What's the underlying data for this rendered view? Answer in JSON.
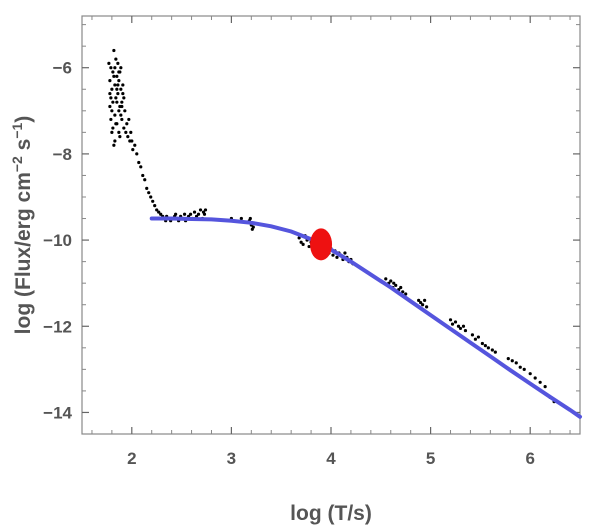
{
  "chart_data": {
    "type": "scatter",
    "xlabel": "log (T/s)",
    "ylabel_parts": {
      "main": "log (Flux/erg cm",
      "exp1": "−2",
      "mid": " s",
      "exp2": "−1",
      "end": ")"
    },
    "xlim": [
      1.5,
      6.5
    ],
    "ylim": [
      -14.5,
      -4.8
    ],
    "x_ticks": [
      {
        "value": 2,
        "label": "2"
      },
      {
        "value": 3,
        "label": "3"
      },
      {
        "value": 4,
        "label": "4"
      },
      {
        "value": 5,
        "label": "5"
      },
      {
        "value": 6,
        "label": "6"
      }
    ],
    "y_ticks": [
      {
        "value": -6,
        "label": "−6"
      },
      {
        "value": -8,
        "label": "−8"
      },
      {
        "value": -10,
        "label": "−10"
      },
      {
        "value": -12,
        "label": "−12"
      },
      {
        "value": -14,
        "label": "−14"
      }
    ],
    "grid": false,
    "series": [
      {
        "kind": "points",
        "color": "#000000",
        "points": [
          [
            1.77,
            -5.9
          ],
          [
            1.78,
            -6.3
          ],
          [
            1.78,
            -6.9
          ],
          [
            1.79,
            -7.2
          ],
          [
            1.79,
            -6.0
          ],
          [
            1.8,
            -6.5
          ],
          [
            1.8,
            -7.5
          ],
          [
            1.81,
            -6.1
          ],
          [
            1.81,
            -6.8
          ],
          [
            1.82,
            -7.8
          ],
          [
            1.82,
            -5.6
          ],
          [
            1.83,
            -6.4
          ],
          [
            1.83,
            -7.1
          ],
          [
            1.84,
            -6.7
          ],
          [
            1.84,
            -5.8
          ],
          [
            1.85,
            -6.2
          ],
          [
            1.85,
            -7.3
          ],
          [
            1.86,
            -6.6
          ],
          [
            1.86,
            -5.9
          ],
          [
            1.87,
            -7.0
          ],
          [
            1.87,
            -6.3
          ],
          [
            1.88,
            -6.9
          ],
          [
            1.88,
            -7.6
          ],
          [
            1.89,
            -6.5
          ],
          [
            1.89,
            -6.0
          ],
          [
            1.9,
            -7.2
          ],
          [
            1.9,
            -6.8
          ],
          [
            1.91,
            -6.4
          ],
          [
            1.92,
            -7.4
          ],
          [
            1.92,
            -6.7
          ],
          [
            1.78,
            -6.6
          ],
          [
            1.8,
            -7.0
          ],
          [
            1.82,
            -6.2
          ],
          [
            1.84,
            -7.3
          ],
          [
            1.86,
            -6.4
          ],
          [
            1.88,
            -6.1
          ],
          [
            1.9,
            -6.9
          ],
          [
            1.83,
            -6.0
          ],
          [
            1.85,
            -6.8
          ],
          [
            1.87,
            -7.5
          ],
          [
            1.79,
            -6.7
          ],
          [
            1.81,
            -7.4
          ],
          [
            1.83,
            -7.7
          ],
          [
            1.85,
            -6.5
          ],
          [
            1.87,
            -6.1
          ],
          [
            1.89,
            -7.1
          ],
          [
            1.91,
            -6.6
          ],
          [
            1.93,
            -7.0
          ],
          [
            1.94,
            -7.5
          ],
          [
            1.95,
            -7.3
          ],
          [
            1.96,
            -7.6
          ],
          [
            1.97,
            -7.2
          ],
          [
            1.98,
            -7.7
          ],
          [
            1.99,
            -7.5
          ],
          [
            2.0,
            -7.7
          ],
          [
            2.01,
            -7.9
          ],
          [
            2.03,
            -7.8
          ],
          [
            2.05,
            -8.0
          ],
          [
            2.07,
            -8.2
          ],
          [
            2.09,
            -8.3
          ],
          [
            2.11,
            -8.5
          ],
          [
            2.13,
            -8.6
          ],
          [
            2.15,
            -8.8
          ],
          [
            2.17,
            -8.9
          ],
          [
            2.19,
            -9.0
          ],
          [
            2.21,
            -9.1
          ],
          [
            2.23,
            -9.2
          ],
          [
            2.25,
            -9.3
          ],
          [
            2.27,
            -9.35
          ],
          [
            2.29,
            -9.4
          ],
          [
            2.31,
            -9.45
          ],
          [
            2.33,
            -9.5
          ],
          [
            2.35,
            -9.45
          ],
          [
            2.37,
            -9.5
          ],
          [
            2.39,
            -9.55
          ],
          [
            2.41,
            -9.5
          ],
          [
            2.43,
            -9.45
          ],
          [
            2.45,
            -9.5
          ],
          [
            2.47,
            -9.55
          ],
          [
            2.49,
            -9.45
          ],
          [
            2.51,
            -9.5
          ],
          [
            2.53,
            -9.4
          ],
          [
            2.55,
            -9.5
          ],
          [
            2.57,
            -9.45
          ],
          [
            2.59,
            -9.4
          ],
          [
            2.61,
            -9.5
          ],
          [
            2.63,
            -9.35
          ],
          [
            2.65,
            -9.45
          ],
          [
            2.67,
            -9.4
          ],
          [
            2.69,
            -9.3
          ],
          [
            2.71,
            -9.5
          ],
          [
            2.73,
            -9.4
          ],
          [
            2.74,
            -9.3
          ],
          [
            2.34,
            -9.55
          ],
          [
            2.44,
            -9.4
          ],
          [
            2.54,
            -9.55
          ],
          [
            2.64,
            -9.5
          ],
          [
            2.72,
            -9.35
          ],
          [
            3.0,
            -9.5
          ],
          [
            3.1,
            -9.5
          ],
          [
            3.18,
            -9.55
          ],
          [
            3.2,
            -9.65
          ],
          [
            3.21,
            -9.75
          ],
          [
            3.22,
            -9.7
          ],
          [
            3.19,
            -9.5
          ],
          [
            3.68,
            -9.95
          ],
          [
            3.7,
            -10.05
          ],
          [
            3.72,
            -10.1
          ],
          [
            3.74,
            -9.9
          ],
          [
            3.76,
            -10.0
          ],
          [
            3.78,
            -10.15
          ],
          [
            3.8,
            -10.05
          ],
          [
            3.82,
            -10.2
          ],
          [
            3.84,
            -10.1
          ],
          [
            3.86,
            -10.0
          ],
          [
            3.88,
            -10.15
          ],
          [
            3.92,
            -10.05
          ],
          [
            3.94,
            -10.25
          ],
          [
            3.96,
            -10.1
          ],
          [
            3.98,
            -10.3
          ],
          [
            4.0,
            -10.2
          ],
          [
            4.02,
            -10.35
          ],
          [
            4.04,
            -10.25
          ],
          [
            4.06,
            -10.4
          ],
          [
            4.08,
            -10.3
          ],
          [
            4.1,
            -10.35
          ],
          [
            4.12,
            -10.45
          ],
          [
            4.14,
            -10.3
          ],
          [
            4.16,
            -10.4
          ],
          [
            4.18,
            -10.5
          ],
          [
            4.2,
            -10.45
          ],
          [
            4.22,
            -10.55
          ],
          [
            4.55,
            -10.9
          ],
          [
            4.58,
            -11.0
          ],
          [
            4.6,
            -10.95
          ],
          [
            4.62,
            -11.1
          ],
          [
            4.65,
            -11.05
          ],
          [
            4.68,
            -11.15
          ],
          [
            4.7,
            -11.1
          ],
          [
            4.72,
            -11.2
          ],
          [
            4.75,
            -11.25
          ],
          [
            4.63,
            -11.0
          ],
          [
            4.88,
            -11.4
          ],
          [
            4.9,
            -11.45
          ],
          [
            4.92,
            -11.5
          ],
          [
            4.94,
            -11.4
          ],
          [
            4.96,
            -11.55
          ],
          [
            5.2,
            -11.85
          ],
          [
            5.22,
            -11.95
          ],
          [
            5.25,
            -11.9
          ],
          [
            5.28,
            -12.0
          ],
          [
            5.3,
            -12.05
          ],
          [
            5.33,
            -12.0
          ],
          [
            5.35,
            -12.1
          ],
          [
            5.42,
            -12.2
          ],
          [
            5.45,
            -12.3
          ],
          [
            5.48,
            -12.25
          ],
          [
            5.52,
            -12.4
          ],
          [
            5.55,
            -12.45
          ],
          [
            5.58,
            -12.5
          ],
          [
            5.62,
            -12.55
          ],
          [
            5.65,
            -12.6
          ],
          [
            5.78,
            -12.75
          ],
          [
            5.82,
            -12.8
          ],
          [
            5.86,
            -12.85
          ],
          [
            5.9,
            -12.95
          ],
          [
            5.94,
            -13.0
          ],
          [
            6.0,
            -13.1
          ],
          [
            6.05,
            -13.2
          ],
          [
            6.1,
            -13.3
          ],
          [
            6.15,
            -13.4
          ],
          [
            6.2,
            -13.65
          ],
          [
            6.24,
            -13.75
          ]
        ]
      },
      {
        "kind": "line",
        "color": "#5555dd",
        "x": [
          2.2,
          2.4,
          2.6,
          2.8,
          3.0,
          3.2,
          3.4,
          3.6,
          3.8,
          3.9,
          4.0,
          4.2,
          4.4,
          4.6,
          4.8,
          5.0,
          5.2,
          5.4,
          5.6,
          5.8,
          6.0,
          6.2,
          6.4,
          6.5
        ],
        "y": [
          -9.5,
          -9.5,
          -9.51,
          -9.52,
          -9.55,
          -9.6,
          -9.68,
          -9.8,
          -9.98,
          -10.1,
          -10.22,
          -10.5,
          -10.8,
          -11.1,
          -11.42,
          -11.74,
          -12.06,
          -12.38,
          -12.7,
          -13.02,
          -13.33,
          -13.64,
          -13.94,
          -14.1
        ]
      },
      {
        "kind": "marker",
        "color": "#ee1111",
        "x": 3.9,
        "y": -10.1,
        "size": "large"
      }
    ]
  }
}
